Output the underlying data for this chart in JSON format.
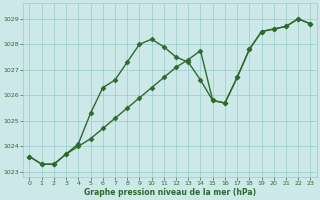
{
  "line1_x": [
    0,
    1,
    2,
    3,
    4,
    5,
    6,
    7,
    8,
    9,
    10,
    11,
    12,
    13,
    14,
    15,
    16,
    17,
    18,
    19,
    20,
    21,
    22,
    23
  ],
  "line1_y": [
    1023.6,
    1023.3,
    1023.3,
    1023.7,
    1024.1,
    1025.3,
    1026.3,
    1026.6,
    1027.3,
    1028.0,
    1028.2,
    1027.9,
    1027.5,
    1027.3,
    1026.6,
    1025.8,
    1025.7,
    1026.7,
    1027.8,
    1028.5,
    1028.6,
    1028.7,
    1029.0,
    1028.8
  ],
  "line2_x": [
    0,
    1,
    2,
    3,
    4,
    5,
    6,
    7,
    8,
    9,
    10,
    11,
    12,
    13,
    14,
    15,
    16,
    17,
    18,
    19,
    20,
    21,
    22,
    23
  ],
  "line2_y": [
    1023.6,
    1023.3,
    1023.3,
    1023.7,
    1024.0,
    1024.3,
    1024.7,
    1025.1,
    1025.5,
    1025.9,
    1026.3,
    1026.7,
    1027.1,
    1027.4,
    1027.75,
    1025.8,
    1025.7,
    1026.7,
    1027.8,
    1028.5,
    1028.6,
    1028.7,
    1029.0,
    1028.8
  ],
  "color": "#2d6a2d",
  "bg_color": "#cce8e8",
  "grid_color": "#99cccc",
  "xlabel": "Graphe pression niveau de la mer (hPa)",
  "ylim": [
    1022.8,
    1029.6
  ],
  "xlim": [
    -0.5,
    23.5
  ],
  "yticks": [
    1023,
    1024,
    1025,
    1026,
    1027,
    1028,
    1029
  ],
  "xticks": [
    0,
    1,
    2,
    3,
    4,
    5,
    6,
    7,
    8,
    9,
    10,
    11,
    12,
    13,
    14,
    15,
    16,
    17,
    18,
    19,
    20,
    21,
    22,
    23
  ],
  "marker": "D",
  "marker_size": 2.5,
  "line_width": 1.0
}
